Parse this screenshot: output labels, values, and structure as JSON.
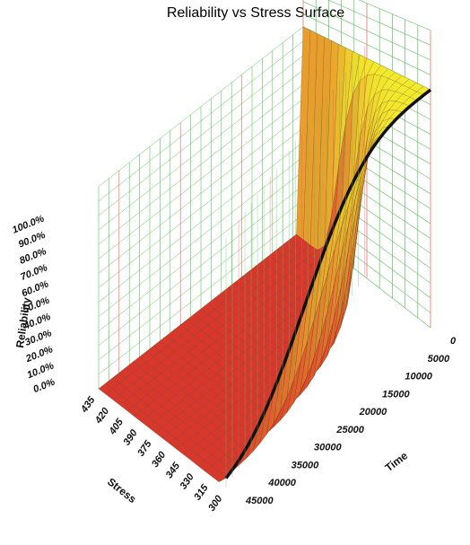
{
  "chart_data": {
    "type": "surface",
    "title": "Reliability vs Stress Surface",
    "x_axis": {
      "label": "Time",
      "ticks": [
        0,
        5000,
        10000,
        15000,
        20000,
        25000,
        30000,
        35000,
        40000,
        45000
      ]
    },
    "y_axis": {
      "label": "Stress",
      "ticks": [
        300,
        315,
        330,
        345,
        360,
        375,
        390,
        405,
        420,
        435
      ]
    },
    "z_axis": {
      "label": "Reliability",
      "ticks": [
        "0.0%",
        "10.0%",
        "20.0%",
        "30.0%",
        "40.0%",
        "50.0%",
        "60.0%",
        "70.0%",
        "80.0%",
        "90.0%",
        "100.0%"
      ],
      "range": [
        0,
        1
      ]
    },
    "highlight_curve": {
      "stress": 300,
      "description_unit": "reliability at lowest stress vs time"
    },
    "colors": {
      "low": "#d8382c",
      "high": "#f2ea2c",
      "grid_green": "#5fbf5f",
      "grid_red": "#e06060",
      "curve": "#111111"
    }
  }
}
